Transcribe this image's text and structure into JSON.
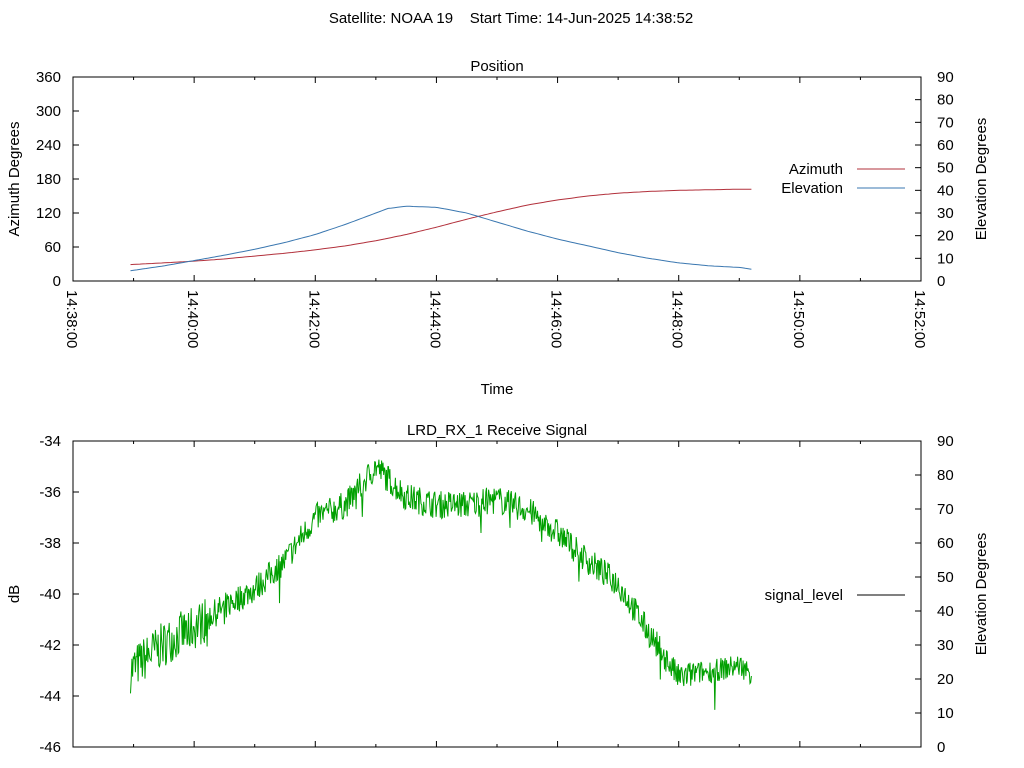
{
  "suptitle": "Satellite: NOAA 19    Start Time: 14-Jun-2025 14:38:52",
  "chart_data": [
    {
      "type": "line",
      "title": "Position",
      "xlabel": "Time",
      "ylabel": "Azimuth Degrees",
      "y2label": "Elevation Degrees",
      "x_ticks": [
        "14:38:00",
        "14:40:00",
        "14:42:00",
        "14:44:00",
        "14:46:00",
        "14:48:00",
        "14:50:00",
        "14:52:00"
      ],
      "xlim_minutes": [
        0,
        14
      ],
      "ylim": [
        0,
        360
      ],
      "y_ticks": [
        0,
        60,
        120,
        180,
        240,
        300,
        360
      ],
      "y2lim": [
        0,
        90
      ],
      "y2_ticks": [
        0,
        10,
        20,
        30,
        40,
        50,
        60,
        70,
        80,
        90
      ],
      "legend_position": "right",
      "grid": false,
      "series": [
        {
          "name": "Azimuth",
          "axis": "left",
          "color": "#b2303b",
          "x": [
            0.95,
            1.5,
            2.0,
            2.5,
            3.0,
            3.5,
            4.0,
            4.5,
            5.0,
            5.5,
            6.0,
            6.5,
            7.0,
            7.5,
            8.0,
            8.5,
            9.0,
            9.5,
            10.0,
            10.5,
            11.0,
            11.2
          ],
          "values": [
            29,
            32,
            35,
            39,
            44,
            49,
            55,
            62,
            71,
            82,
            95,
            109,
            122,
            134,
            143,
            150,
            155,
            158,
            160,
            161,
            162,
            162
          ]
        },
        {
          "name": "Elevation",
          "axis": "right",
          "color": "#3a77b0",
          "x": [
            0.95,
            1.5,
            2.0,
            2.5,
            3.0,
            3.5,
            4.0,
            4.5,
            5.0,
            5.2,
            5.5,
            6.0,
            6.5,
            7.0,
            7.5,
            8.0,
            8.5,
            9.0,
            9.5,
            10.0,
            10.5,
            11.0,
            11.2
          ],
          "values": [
            4.5,
            6.7,
            9,
            11.4,
            14,
            17,
            20.5,
            25,
            30,
            32,
            33,
            32.5,
            30,
            26,
            22,
            18.5,
            15.5,
            12.5,
            10,
            8,
            6.7,
            6,
            5.2
          ]
        }
      ]
    },
    {
      "type": "line",
      "title": "LRD_RX_1 Receive Signal",
      "ylabel": "dB",
      "y2label": "Elevation Degrees",
      "xlim_minutes": [
        0,
        14
      ],
      "ylim": [
        -46,
        -34
      ],
      "y_ticks": [
        -46,
        -44,
        -42,
        -40,
        -38,
        -36,
        -34
      ],
      "y2lim": [
        0,
        90
      ],
      "y2_ticks": [
        0,
        10,
        20,
        30,
        40,
        50,
        60,
        70,
        80,
        90
      ],
      "legend_position": "right",
      "grid": false,
      "series": [
        {
          "name": "signal_level",
          "color": "#00a000",
          "x": [
            0.95,
            1.3,
            1.6,
            2.0,
            2.5,
            3.0,
            3.5,
            4.0,
            4.5,
            5.0,
            5.5,
            6.0,
            6.5,
            7.0,
            7.5,
            8.0,
            8.5,
            9.0,
            9.5,
            10.0,
            10.3,
            10.6,
            10.8,
            11.0,
            11.2
          ],
          "values": [
            -43.0,
            -42.3,
            -41.8,
            -41.3,
            -40.5,
            -39.8,
            -38.7,
            -37.0,
            -36.5,
            -35.0,
            -36.2,
            -36.5,
            -36.5,
            -36.3,
            -36.7,
            -37.6,
            -38.7,
            -39.6,
            -41.5,
            -43.3,
            -43.1,
            -43.0,
            -42.9,
            -42.8,
            -43.1
          ]
        }
      ]
    }
  ]
}
